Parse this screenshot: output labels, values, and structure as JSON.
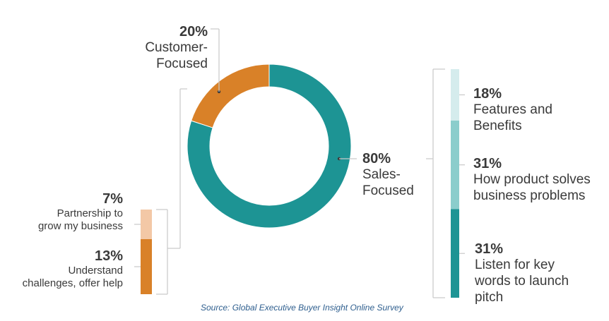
{
  "chart_data": [
    {
      "type": "pie",
      "style": "donut",
      "categories": [
        "Sales-Focused",
        "Customer-Focused"
      ],
      "values": [
        80,
        20
      ],
      "colors": [
        "#1d9494",
        "#d98128"
      ],
      "labels": [
        {
          "percent": "80%",
          "lines": [
            "Sales-",
            "Focused"
          ]
        },
        {
          "percent": "20%",
          "lines": [
            "Customer-",
            "Focused"
          ]
        }
      ]
    },
    {
      "type": "bar",
      "stacked": true,
      "parent": "Sales-Focused",
      "categories": [
        "Features and Benefits",
        "How product solves business problems",
        "Listen for key words to launch pitch"
      ],
      "values": [
        18,
        31,
        31
      ],
      "colors": [
        "#d5eced",
        "#8bcdcc",
        "#1d9494"
      ],
      "labels": [
        {
          "percent": "18%",
          "lines": [
            "Features and",
            "Benefits"
          ]
        },
        {
          "percent": "31%",
          "lines": [
            "How product solves",
            "business problems"
          ]
        },
        {
          "percent": "31%",
          "lines": [
            "Listen for key",
            "words to launch",
            "pitch"
          ]
        }
      ]
    },
    {
      "type": "bar",
      "stacked": true,
      "parent": "Customer-Focused",
      "categories": [
        "Partnership to grow my business",
        "Understand challenges, offer help"
      ],
      "values": [
        7,
        13
      ],
      "colors": [
        "#f3c8a6",
        "#d98128"
      ],
      "labels": [
        {
          "percent": "7%",
          "lines": [
            "Partnership to",
            "grow my business"
          ]
        },
        {
          "percent": "13%",
          "lines": [
            "Understand",
            "challenges, offer help"
          ]
        }
      ]
    }
  ],
  "source": "Source: Global Executive Buyer Insight Online Survey"
}
